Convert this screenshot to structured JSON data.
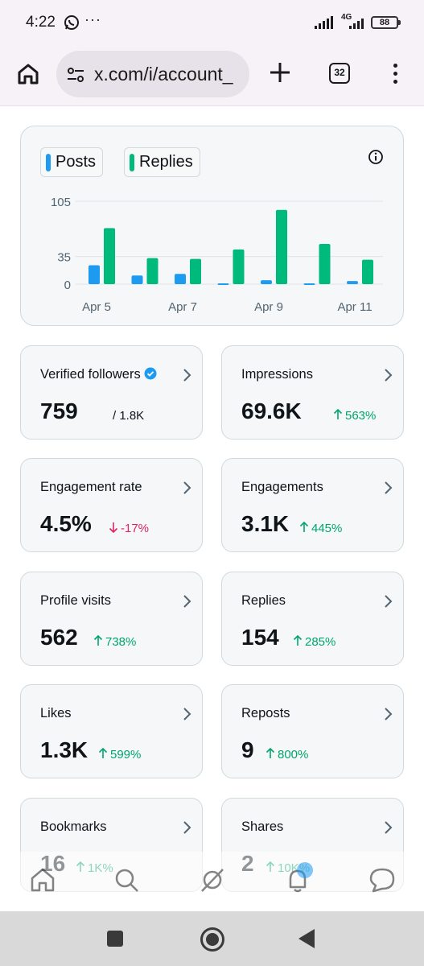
{
  "status_bar": {
    "time": "4:22",
    "dots": "···",
    "network": "4G",
    "battery": "88"
  },
  "browser": {
    "url": "x.com/i/account_",
    "tab_count": "32"
  },
  "chart_data": {
    "type": "bar",
    "legend": [
      "Posts",
      "Replies"
    ],
    "x_tick_labels": [
      "Apr 5",
      "Apr 7",
      "Apr 9",
      "Apr 11"
    ],
    "y_ticks": [
      0,
      35,
      105
    ],
    "ylim": [
      0,
      105
    ],
    "categories": [
      "Apr 5",
      "Apr 6",
      "Apr 7",
      "Apr 8",
      "Apr 9",
      "Apr 10",
      "Apr 11"
    ],
    "series": [
      {
        "name": "Posts",
        "color": "#1d9bf0",
        "values": [
          24,
          11,
          13,
          1,
          5,
          1,
          4
        ]
      },
      {
        "name": "Replies",
        "color": "#00ba7c",
        "values": [
          71,
          33,
          32,
          44,
          94,
          51,
          31
        ]
      }
    ],
    "grid": true
  },
  "metrics": [
    {
      "label": "Verified followers",
      "value": "759",
      "sub": "/ 1.8K",
      "verified": true
    },
    {
      "label": "Impressions",
      "value": "69.6K",
      "change": "563%",
      "direction": "up"
    },
    {
      "label": "Engagement rate",
      "value": "4.5%",
      "change": "-17%",
      "direction": "down"
    },
    {
      "label": "Engagements",
      "value": "3.1K",
      "change": "445%",
      "direction": "up"
    },
    {
      "label": "Profile visits",
      "value": "562",
      "change": "738%",
      "direction": "up"
    },
    {
      "label": "Replies",
      "value": "154",
      "change": "285%",
      "direction": "up"
    },
    {
      "label": "Likes",
      "value": "1.3K",
      "change": "599%",
      "direction": "up"
    },
    {
      "label": "Reposts",
      "value": "9",
      "change": "800%",
      "direction": "up"
    },
    {
      "label": "Bookmarks",
      "value": "16",
      "change": "1K%",
      "direction": "up"
    },
    {
      "label": "Shares",
      "value": "2",
      "change": "10K%",
      "direction": "up"
    }
  ],
  "colors": {
    "accent_blue": "#1d9bf0",
    "accent_green": "#00ba7c",
    "change_up": "#00a56a",
    "change_down": "#e0245e"
  },
  "bottom_nav_icons": [
    "home-icon",
    "search-icon",
    "grok-icon",
    "notifications-icon",
    "messages-icon"
  ]
}
